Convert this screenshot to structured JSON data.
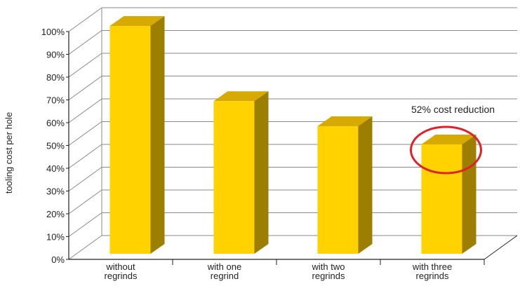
{
  "chart_data": {
    "type": "bar",
    "style": "3d",
    "categories": [
      [
        "without",
        "regrinds"
      ],
      [
        "with one",
        "regrind"
      ],
      [
        "with two",
        "regrinds"
      ],
      [
        "with three",
        "regrinds"
      ]
    ],
    "values": [
      100,
      67,
      56,
      48
    ],
    "ylabel": "tooling cost per hole",
    "xlabel": "",
    "ylim": [
      0,
      100
    ],
    "yticks": [
      "0%",
      "10%",
      "20%",
      "30%",
      "40%",
      "50%",
      "60%",
      "70%",
      "80%",
      "90%",
      "100%"
    ],
    "grid": true,
    "annotation": {
      "text": "52% cost reduction",
      "target_category": 3,
      "circled": true
    },
    "colors": {
      "bar_front": "#ffd200",
      "bar_top": "#d6aa00",
      "bar_side": "#9c7e00",
      "grid": "#8a8a8a",
      "annotation_circle": "#e0202a"
    }
  }
}
